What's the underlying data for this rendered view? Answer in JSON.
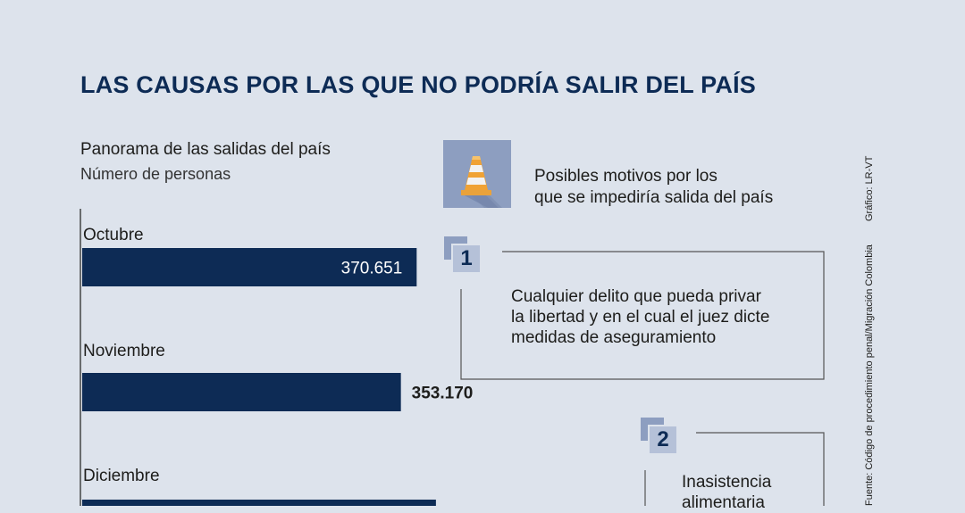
{
  "title": "LAS CAUSAS POR LAS QUE NO PODRÍA SALIR DEL PAÍS",
  "chart_data": {
    "type": "bar",
    "orientation": "horizontal",
    "title": "Panorama de las salidas del país",
    "subtitle": "Número de personas",
    "categories": [
      "Octubre",
      "Noviembre",
      "Diciembre"
    ],
    "values": [
      370651,
      353170,
      392000
    ],
    "labels": [
      "370.651",
      "353.170",
      ""
    ],
    "xlim": [
      0,
      404000
    ],
    "colors": {
      "bar": "#0d2b55",
      "axis": "#1d1d1b",
      "label_inside": "#ffffff",
      "label_outside": "#1d1d1b"
    }
  },
  "motives": {
    "heading_lines": [
      "Posibles motivos por los",
      "que se impediría salida del país"
    ],
    "icon": "traffic-cone-icon",
    "items": [
      {
        "number": "1",
        "lines": [
          "Cualquier delito que pueda privar",
          "la libertad y en el cual el juez dicte",
          "medidas de aseguramiento"
        ]
      },
      {
        "number": "2",
        "lines": [
          "Inasistencia",
          "alimentaria"
        ]
      }
    ]
  },
  "source": "Fuente: Código de procedimiento penal/Migración Colombia",
  "credit": "Gráfico: LR-VT",
  "colors": {
    "background": "#dde3ec",
    "title": "#0d2b55",
    "accent": "#8d9ec0"
  }
}
